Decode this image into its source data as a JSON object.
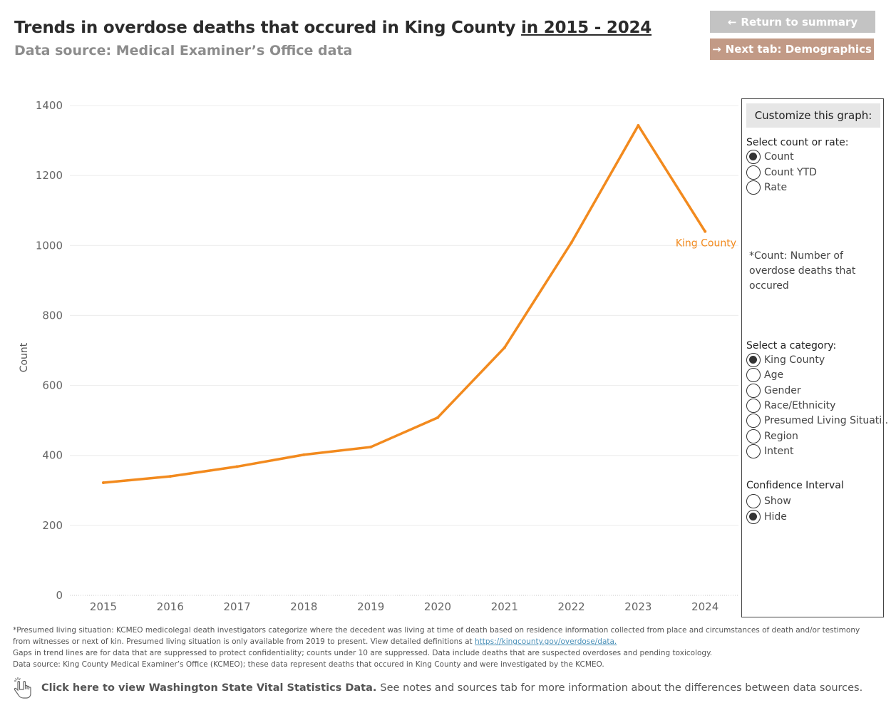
{
  "header": {
    "title_main": "Trends in overdose deaths that occured in King County ",
    "title_range": "in 2015 - 2024",
    "subtitle": "Data source: Medical Examiner’s Office data"
  },
  "buttons": {
    "return_label": "Return to summary",
    "return_icon": "arrow-left-icon",
    "next_label": "Next tab: Demographics",
    "next_icon": "arrow-right-icon"
  },
  "chart_data": {
    "type": "line",
    "title": "Trends in overdose deaths that occured in King County in 2015 - 2024",
    "xlabel": "",
    "ylabel": "Count",
    "x": [
      "2015",
      "2016",
      "2017",
      "2018",
      "2019",
      "2020",
      "2021",
      "2022",
      "2023",
      "2024"
    ],
    "y_ticks": [
      0,
      200,
      400,
      600,
      800,
      1000,
      1200,
      1400
    ],
    "ylim": [
      0,
      1400
    ],
    "grid": true,
    "series": [
      {
        "name": "King County",
        "color": "#f28a1e",
        "values": [
          322,
          340,
          368,
          402,
          424,
          508,
          708,
          1008,
          1343,
          1040
        ]
      }
    ]
  },
  "panel": {
    "heading": "Customize this graph:",
    "count_rate_label": "Select count or rate:",
    "count_rate_options": [
      {
        "label": "Count",
        "selected": true
      },
      {
        "label": "Count YTD",
        "selected": false
      },
      {
        "label": "Rate",
        "selected": false
      }
    ],
    "note": "*Count: Number of overdose deaths that occured",
    "category_label": "Select a category:",
    "category_options": [
      {
        "label": "King County",
        "selected": true
      },
      {
        "label": "Age",
        "selected": false
      },
      {
        "label": "Gender",
        "selected": false
      },
      {
        "label": "Race/Ethnicity",
        "selected": false
      },
      {
        "label": "Presumed Living Situati..",
        "selected": false
      },
      {
        "label": "Region",
        "selected": false
      },
      {
        "label": "Intent",
        "selected": false
      }
    ],
    "ci_label": "Confidence Interval",
    "ci_options": [
      {
        "label": "Show",
        "selected": false
      },
      {
        "label": "Hide",
        "selected": true
      }
    ]
  },
  "footnotes": {
    "line1": "*Presumed living situation: KCMEO medicolegal death investigators categorize where the decedent was living at time of death based on residence information collected from place and circumstances of death and/or testimony from witnesses or next of kin. Presumed living situation is only available from 2019 to present. View detailed definitions at ",
    "link": "https://kingcounty.gov/overdose/data.",
    "line2": "Gaps in trend lines are for data that are suppressed to protect confidentiality; counts under 10 are suppressed. Data include deaths that are suspected overdoses and pending toxicology.",
    "line3": "Data source: King County Medical Examiner’s Office (KCMEO); these data represent deaths that occured in King County and were investigated by the KCMEO."
  },
  "bottom_link": {
    "strong": "Click here to view Washington State Vital Statistics Data.",
    "rest": "See notes and sources tab for more information about the differences between data sources.",
    "icon": "pointing-hand-icon"
  }
}
